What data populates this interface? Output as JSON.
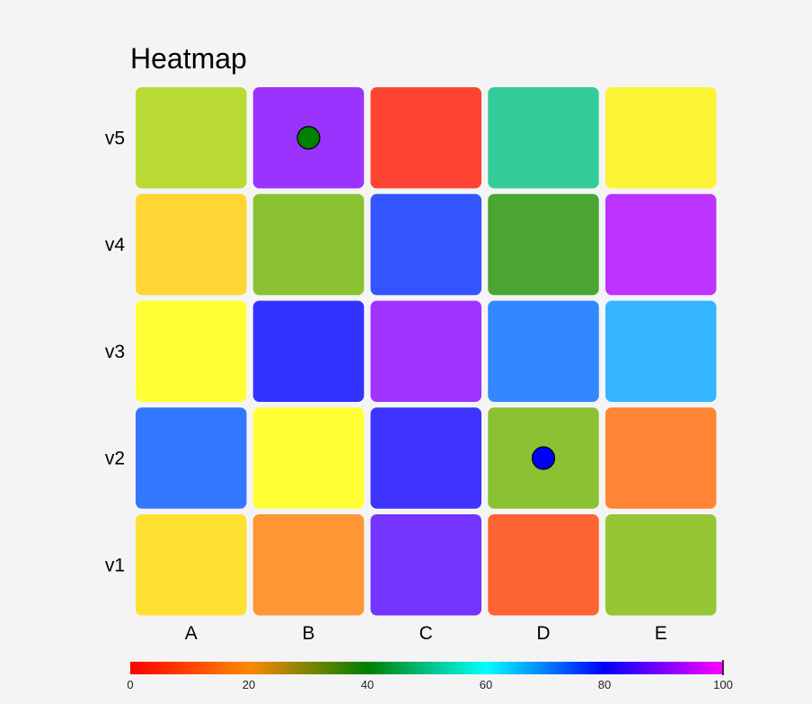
{
  "chart_data": {
    "type": "heatmap",
    "title": "Heatmap",
    "x_categories": [
      "A",
      "B",
      "C",
      "D",
      "E"
    ],
    "y_categories": [
      "v1",
      "v2",
      "v3",
      "v4",
      "v5"
    ],
    "cells": [
      {
        "x": "A",
        "y": "v5",
        "color": "#b9da33"
      },
      {
        "x": "B",
        "y": "v5",
        "color": "#9b33ff"
      },
      {
        "x": "C",
        "y": "v5",
        "color": "#ff4433"
      },
      {
        "x": "D",
        "y": "v5",
        "color": "#33cc99"
      },
      {
        "x": "E",
        "y": "v5",
        "color": "#fcf433"
      },
      {
        "x": "A",
        "y": "v4",
        "color": "#ffd633"
      },
      {
        "x": "B",
        "y": "v4",
        "color": "#8bc233"
      },
      {
        "x": "C",
        "y": "v4",
        "color": "#3355ff"
      },
      {
        "x": "D",
        "y": "v4",
        "color": "#4ba533"
      },
      {
        "x": "E",
        "y": "v4",
        "color": "#bd33ff"
      },
      {
        "x": "A",
        "y": "v3",
        "color": "#ffff33"
      },
      {
        "x": "B",
        "y": "v3",
        "color": "#3333ff"
      },
      {
        "x": "C",
        "y": "v3",
        "color": "#a033ff"
      },
      {
        "x": "D",
        "y": "v3",
        "color": "#3388ff"
      },
      {
        "x": "E",
        "y": "v3",
        "color": "#33b5ff"
      },
      {
        "x": "A",
        "y": "v2",
        "color": "#3377ff"
      },
      {
        "x": "B",
        "y": "v2",
        "color": "#ffff33"
      },
      {
        "x": "C",
        "y": "v2",
        "color": "#3f33ff"
      },
      {
        "x": "D",
        "y": "v2",
        "color": "#8bc233"
      },
      {
        "x": "E",
        "y": "v2",
        "color": "#ff8433"
      },
      {
        "x": "A",
        "y": "v1",
        "color": "#ffe033"
      },
      {
        "x": "B",
        "y": "v1",
        "color": "#ff9533"
      },
      {
        "x": "C",
        "y": "v1",
        "color": "#7433ff"
      },
      {
        "x": "D",
        "y": "v1",
        "color": "#ff6433"
      },
      {
        "x": "E",
        "y": "v1",
        "color": "#94c733"
      }
    ],
    "markers": [
      {
        "x": "B",
        "y": "v5",
        "color": "#008000"
      },
      {
        "x": "D",
        "y": "v2",
        "color": "#0000ff"
      }
    ],
    "color_scale": {
      "range": [
        0,
        100
      ],
      "ticks": [
        0,
        20,
        40,
        60,
        80,
        100
      ],
      "stops": [
        {
          "value": 0,
          "color": "#ff0000"
        },
        {
          "value": 20,
          "color": "#ff8800"
        },
        {
          "value": 40,
          "color": "#008000"
        },
        {
          "value": 60,
          "color": "#00ffff"
        },
        {
          "value": 80,
          "color": "#0000ff"
        },
        {
          "value": 100,
          "color": "#ff00ff"
        }
      ]
    },
    "grid": false,
    "legend": "bottom"
  }
}
